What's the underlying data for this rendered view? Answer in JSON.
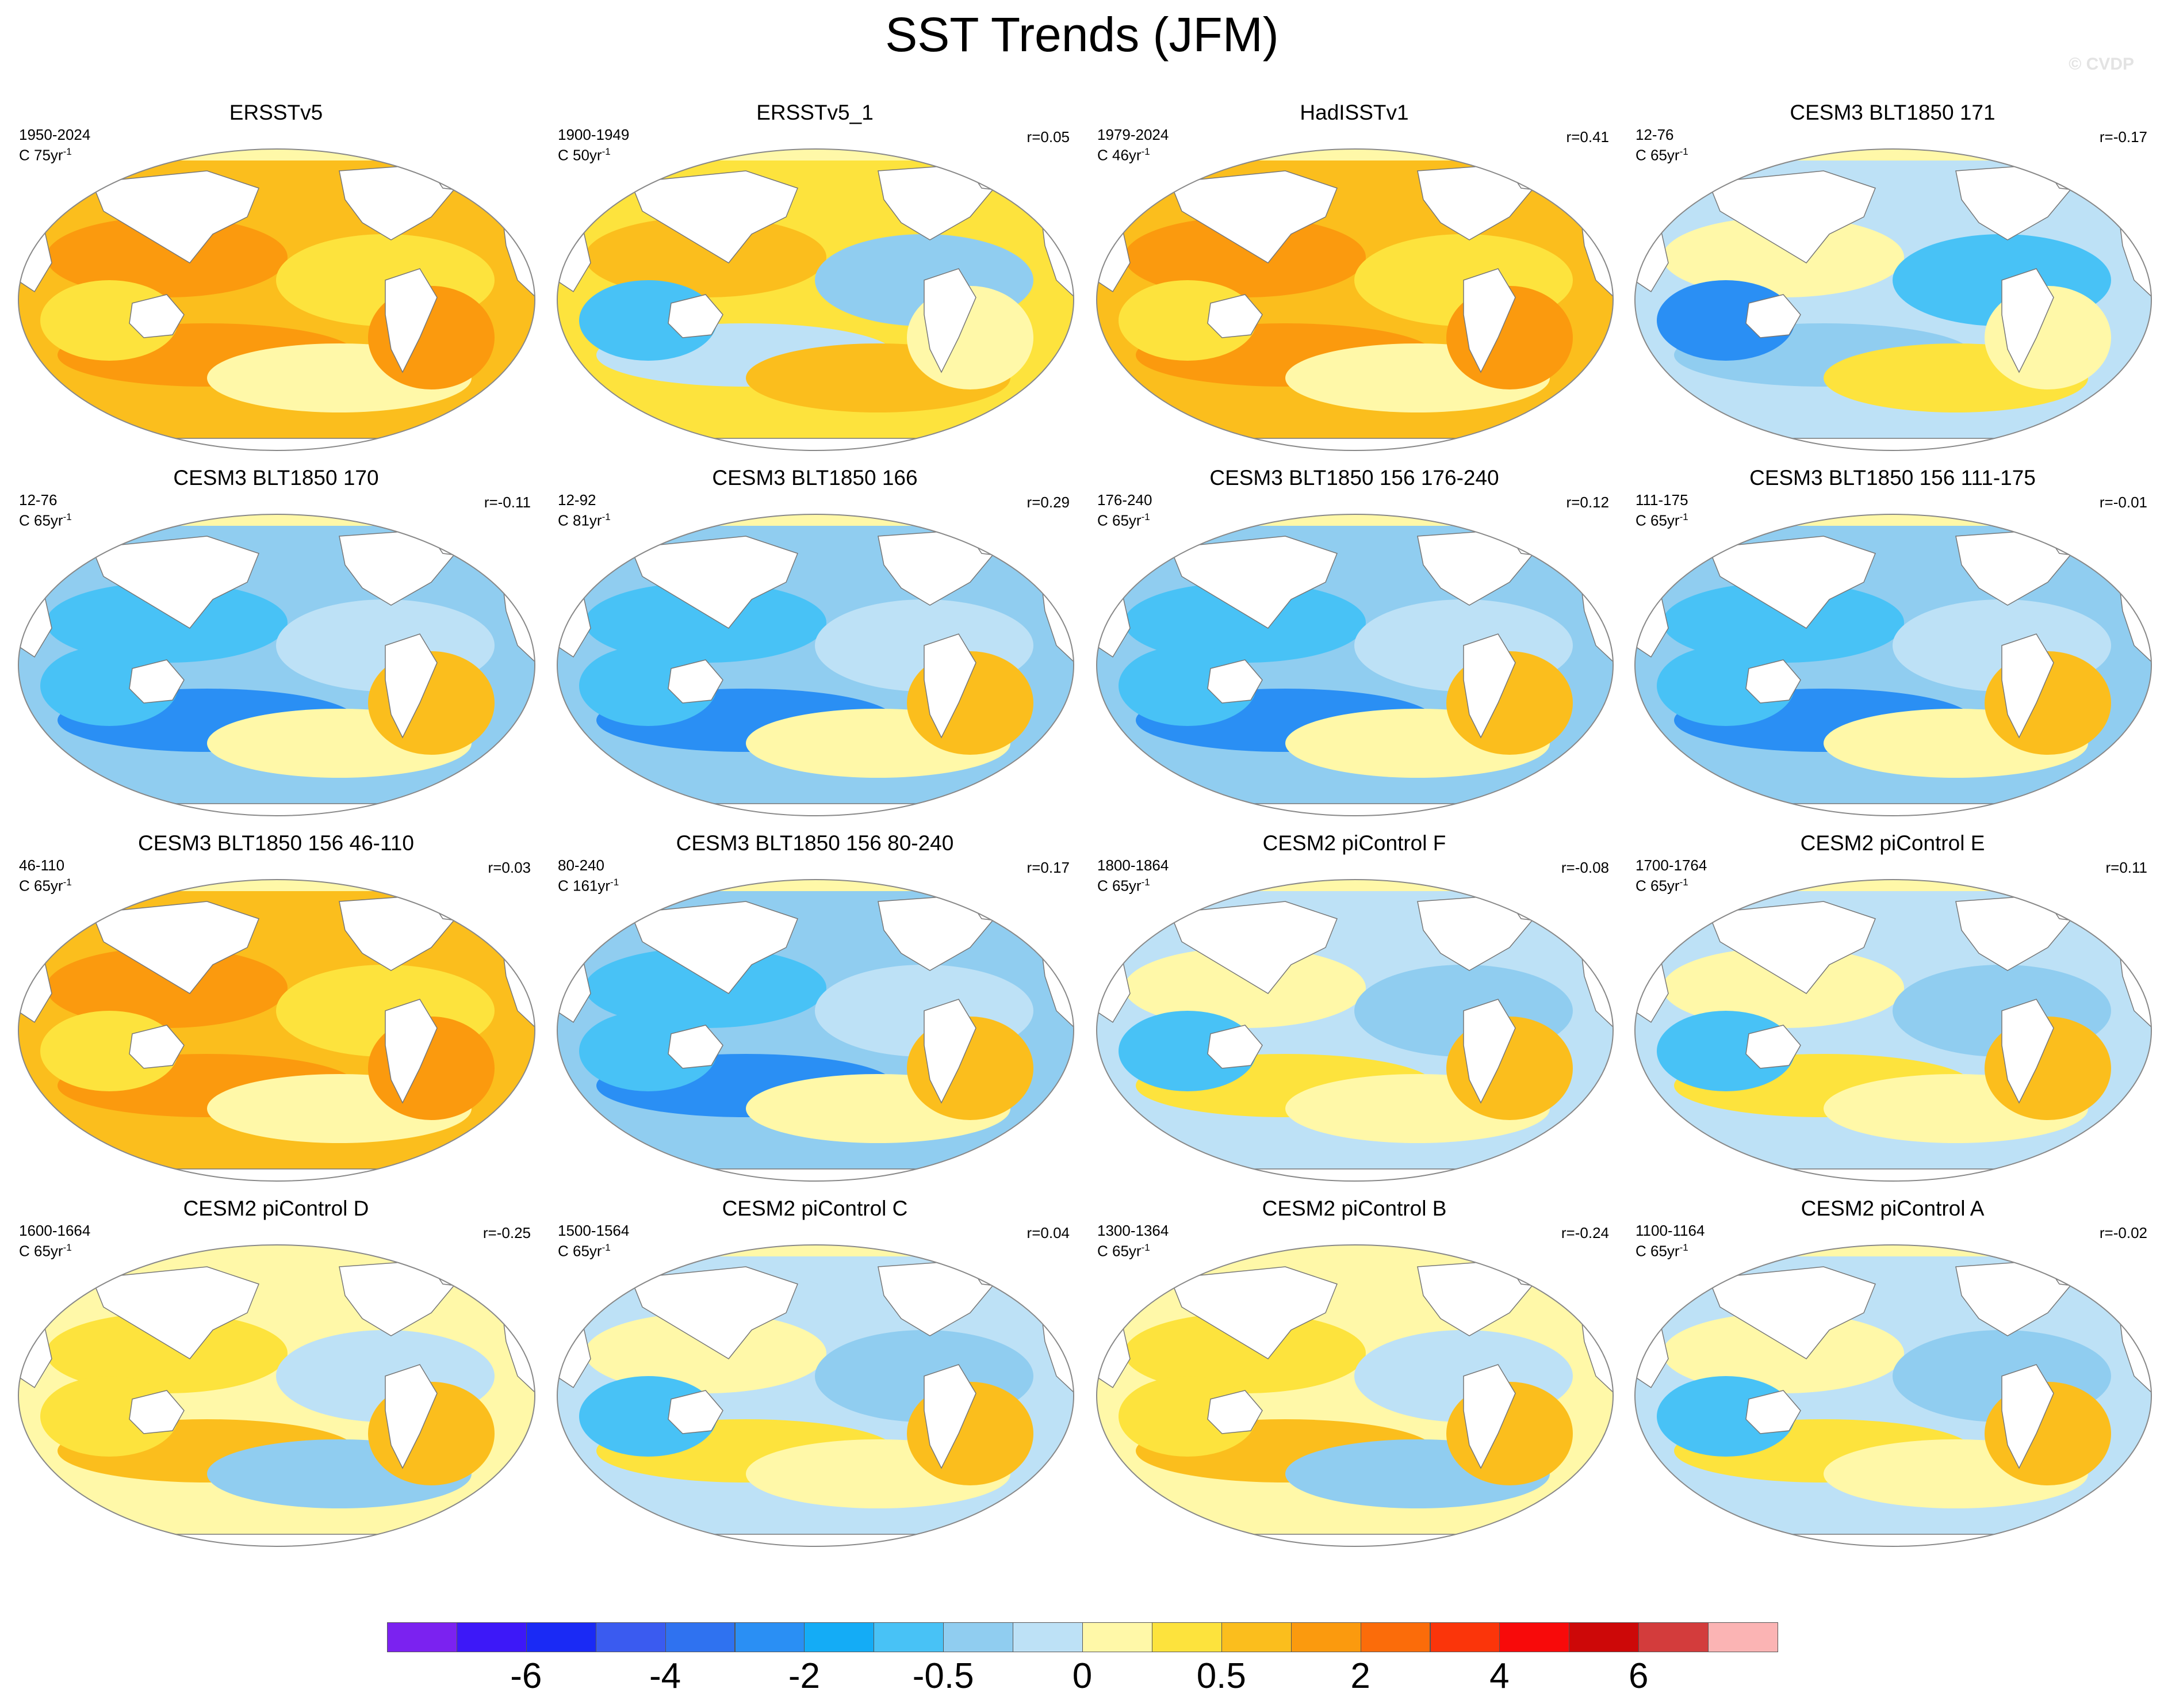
{
  "title": "SST Trends (JFM)",
  "watermark": "© CVDP",
  "colorbar": {
    "colors": [
      "#7b22f0",
      "#3d18f8",
      "#1a2af5",
      "#3a5bf0",
      "#2f72f0",
      "#2a8ff4",
      "#14acf6",
      "#48c2f6",
      "#90cdf0",
      "#bde1f6",
      "#fff8a8",
      "#fde33d",
      "#fbbe1d",
      "#fb9a0e",
      "#fb6c0a",
      "#fb350a",
      "#f80a0a",
      "#cd0808",
      "#d33c3c",
      "#fbb4b4"
    ],
    "labels": [
      {
        "text": "-6",
        "boundary": 2
      },
      {
        "text": "-4",
        "boundary": 4
      },
      {
        "text": "-2",
        "boundary": 6
      },
      {
        "text": "-0.5",
        "boundary": 8
      },
      {
        "text": "0",
        "boundary": 10
      },
      {
        "text": "0.5",
        "boundary": 12
      },
      {
        "text": "2",
        "boundary": 14
      },
      {
        "text": "4",
        "boundary": 16
      },
      {
        "text": "6",
        "boundary": 18
      }
    ]
  },
  "panels": [
    {
      "title": "ERSSTv5",
      "period": "1950-2024",
      "rate": "C 75yr",
      "r": "",
      "pattern": "warm"
    },
    {
      "title": "ERSSTv5_1",
      "period": "1900-1949",
      "rate": "C 50yr",
      "r": "r=0.05",
      "pattern": "mixedwarm"
    },
    {
      "title": "HadISSTv1",
      "period": "1979-2024",
      "rate": "C 46yr",
      "r": "r=0.41",
      "pattern": "warm"
    },
    {
      "title": "CESM3 BLT1850 171",
      "period": "12-76",
      "rate": "C 65yr",
      "r": "r=-0.17",
      "pattern": "coolmix"
    },
    {
      "title": "CESM3 BLT1850 170",
      "period": "12-76",
      "rate": "C 65yr",
      "r": "r=-0.11",
      "pattern": "cool"
    },
    {
      "title": "CESM3 BLT1850 166",
      "period": "12-92",
      "rate": "C 81yr",
      "r": "r=0.29",
      "pattern": "cool"
    },
    {
      "title": "CESM3 BLT1850 156 176-240",
      "period": "176-240",
      "rate": "C 65yr",
      "r": "r=0.12",
      "pattern": "cool"
    },
    {
      "title": "CESM3 BLT1850 156 111-175",
      "period": "111-175",
      "rate": "C 65yr",
      "r": "r=-0.01",
      "pattern": "cool"
    },
    {
      "title": "CESM3 BLT1850 156 46-110",
      "period": "46-110",
      "rate": "C 65yr",
      "r": "r=0.03",
      "pattern": "warm"
    },
    {
      "title": "CESM3 BLT1850 156 80-240",
      "period": "80-240",
      "rate": "C 161yr",
      "r": "r=0.17",
      "pattern": "cool"
    },
    {
      "title": "CESM2 piControl F",
      "period": "1800-1864",
      "rate": "C 65yr",
      "r": "r=-0.08",
      "pattern": "neutral"
    },
    {
      "title": "CESM2 piControl E",
      "period": "1700-1764",
      "rate": "C 65yr",
      "r": "r=0.11",
      "pattern": "neutral"
    },
    {
      "title": "CESM2 piControl D",
      "period": "1600-1664",
      "rate": "C 65yr",
      "r": "r=-0.25",
      "pattern": "neutralwarm"
    },
    {
      "title": "CESM2 piControl C",
      "period": "1500-1564",
      "rate": "C 65yr",
      "r": "r=0.04",
      "pattern": "neutral"
    },
    {
      "title": "CESM2 piControl B",
      "period": "1300-1364",
      "rate": "C 65yr",
      "r": "r=-0.24",
      "pattern": "neutralwarm"
    },
    {
      "title": "CESM2 piControl A",
      "period": "1100-1164",
      "rate": "C 65yr",
      "r": "r=-0.02",
      "pattern": "neutral"
    }
  ]
}
